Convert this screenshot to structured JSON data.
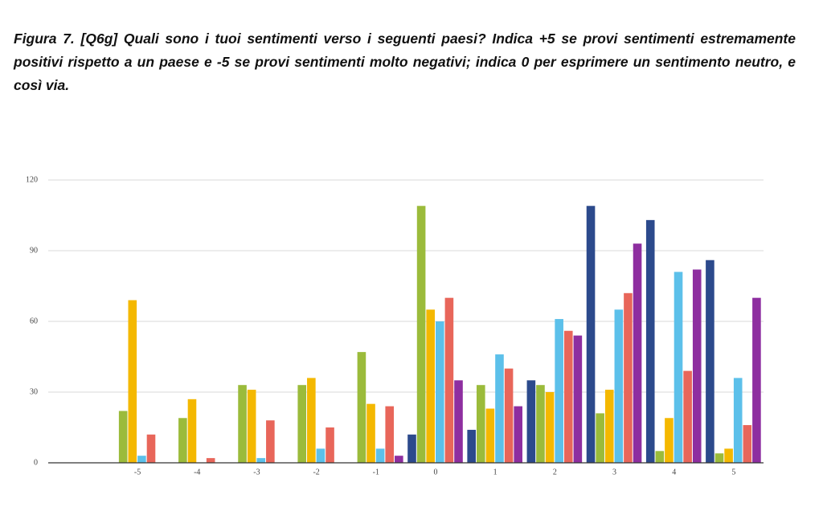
{
  "chart_data": {
    "type": "bar",
    "title": "Figura 7. [Q6g] Quali sono i tuoi sentimenti verso i seguenti paesi? Indica +5 se provi sentimenti estremamente positivi rispetto a un paese e -5 se provi sentimenti molto negativi; indica 0 per esprimere un sentimento neutro, e così via.",
    "categories": [
      "-5",
      "-4",
      "-3",
      "-2",
      "-1",
      "0",
      "1",
      "2",
      "3",
      "4",
      "5"
    ],
    "series": [
      {
        "color": "#2c4a8c",
        "values": [
          0,
          0,
          0,
          0,
          0,
          12,
          14,
          35,
          109,
          103,
          86
        ]
      },
      {
        "color": "#9bbb3b",
        "values": [
          22,
          19,
          33,
          33,
          47,
          109,
          33,
          33,
          21,
          5,
          4
        ]
      },
      {
        "color": "#f4b800",
        "values": [
          69,
          27,
          31,
          36,
          25,
          65,
          23,
          30,
          31,
          19,
          6
        ]
      },
      {
        "color": "#5cc0ea",
        "values": [
          3,
          0,
          2,
          6,
          6,
          60,
          46,
          61,
          65,
          81,
          36
        ]
      },
      {
        "color": "#e8665a",
        "values": [
          12,
          2,
          18,
          15,
          24,
          70,
          40,
          56,
          72,
          39,
          16
        ]
      },
      {
        "color": "#8e2ea0",
        "values": [
          0,
          0,
          0,
          0,
          3,
          35,
          24,
          54,
          93,
          82,
          70
        ]
      }
    ],
    "ylim": [
      0,
      120
    ],
    "yticks": [
      0,
      30,
      60,
      90,
      120
    ],
    "grid": true
  }
}
